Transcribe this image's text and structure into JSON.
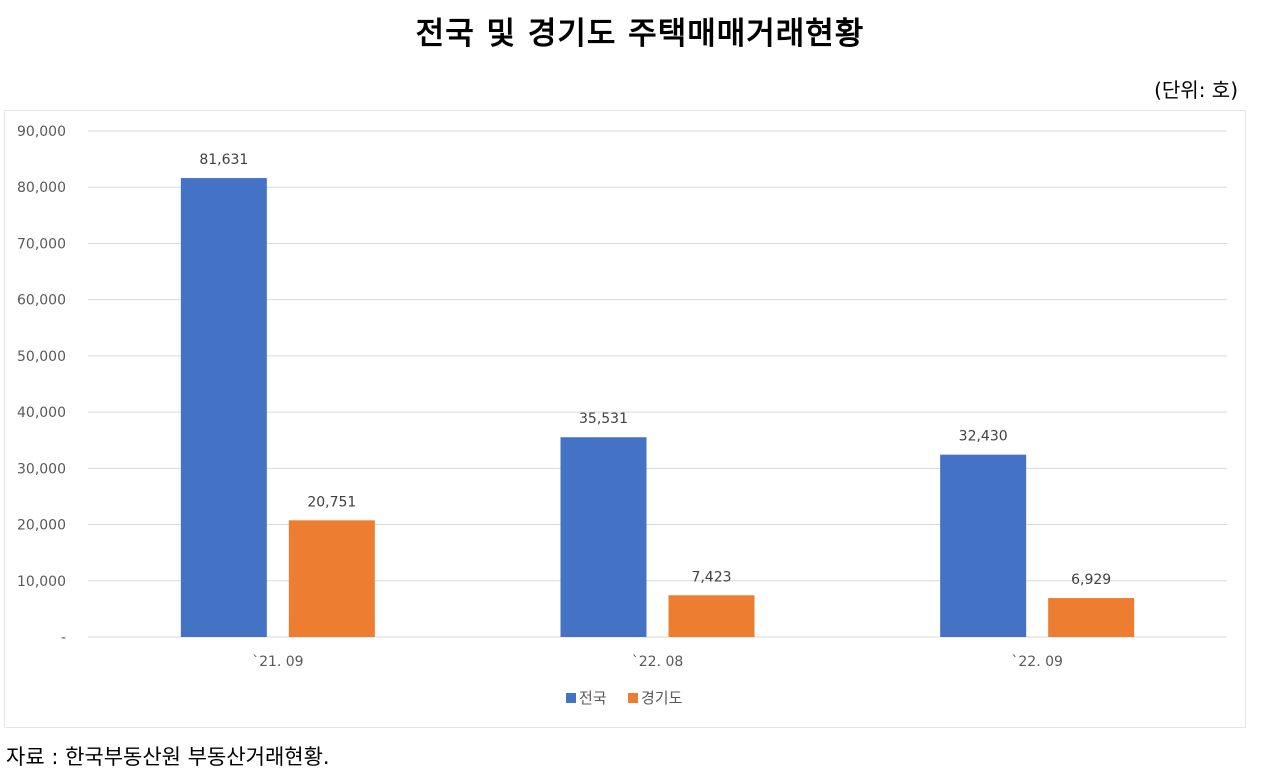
{
  "title": "전국 및 경기도 주택매매거래현황",
  "unit_label": "(단위: 호)",
  "source": "자료 : 한국부동산원 부동산거래현황.",
  "colors": {
    "series_national": "#4472C4",
    "series_gyeonggi": "#ED7D31",
    "grid": "#d9d9d9",
    "tick_text": "#595959"
  },
  "chart_data": {
    "type": "bar",
    "title": "전국 및 경기도 주택매매거래현황",
    "categories": [
      "`21. 09",
      "`22. 08",
      "`22. 09"
    ],
    "series": [
      {
        "name": "전국",
        "values": [
          81631,
          35531,
          32430
        ],
        "labels": [
          "81,631",
          "35,531",
          "32,430"
        ]
      },
      {
        "name": "경기도",
        "values": [
          20751,
          7423,
          6929
        ],
        "labels": [
          "20,751",
          "7,423",
          "6,929"
        ]
      }
    ],
    "yticks": [
      "-",
      "10,000",
      "20,000",
      "30,000",
      "40,000",
      "50,000",
      "60,000",
      "70,000",
      "80,000",
      "90,000"
    ],
    "ylim": [
      0,
      90000
    ],
    "grid": true,
    "legend_position": "bottom"
  }
}
